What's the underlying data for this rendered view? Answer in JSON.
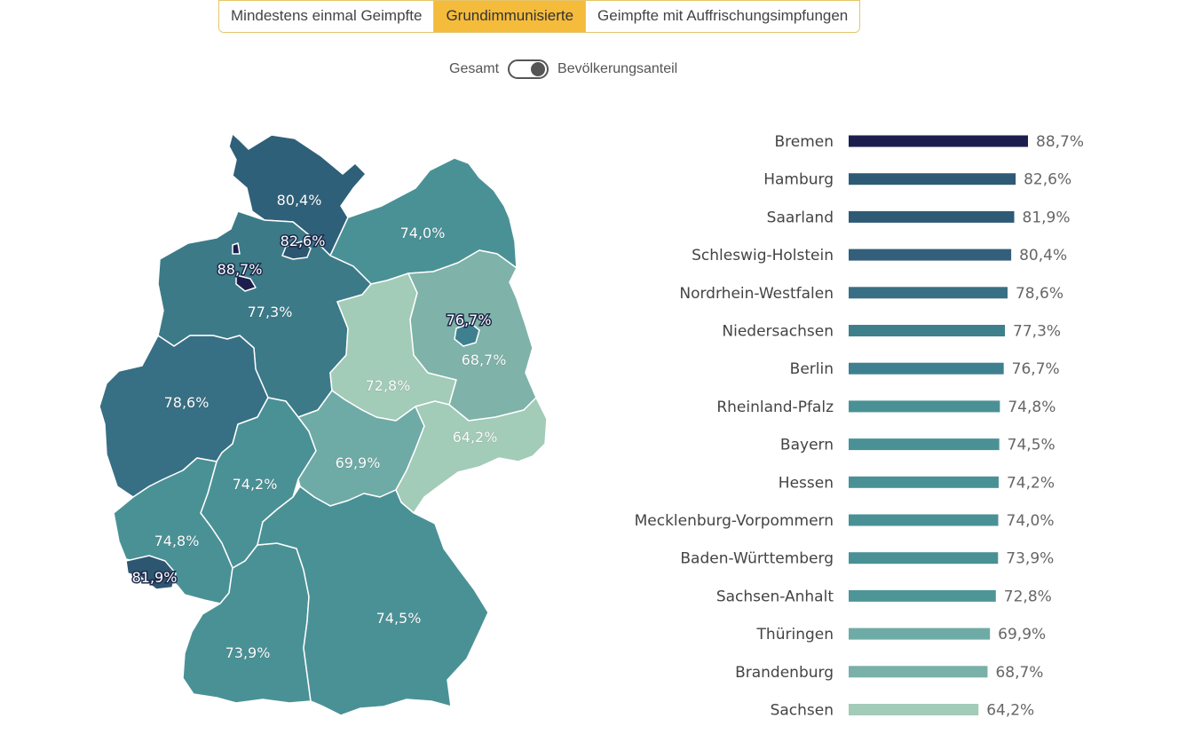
{
  "tabs": [
    {
      "label": "Mindestens einmal Geimpfte",
      "active": false
    },
    {
      "label": "Grundimmunisierte",
      "active": true
    },
    {
      "label": "Geimpfte mit Auffrischungsimpfungen",
      "active": false
    }
  ],
  "toggle": {
    "left_label": "Gesamt",
    "right_label": "Bevölkerungsanteil",
    "selected": "Bevölkerungsanteil"
  },
  "chart_data": [
    {
      "type": "bar",
      "orientation": "horizontal",
      "unit": "%",
      "categories": [
        "Bremen",
        "Hamburg",
        "Saarland",
        "Schleswig-Holstein",
        "Nordrhein-Westfalen",
        "Niedersachsen",
        "Berlin",
        "Rheinland-Pfalz",
        "Bayern",
        "Hessen",
        "Mecklenburg-Vorpommern",
        "Baden-Württemberg",
        "Sachsen-Anhalt",
        "Thüringen",
        "Brandenburg",
        "Sachsen"
      ],
      "values": [
        88.7,
        82.6,
        81.9,
        80.4,
        78.6,
        77.3,
        76.7,
        74.8,
        74.5,
        74.2,
        74.0,
        73.9,
        72.8,
        69.9,
        68.7,
        64.2
      ],
      "value_labels": [
        "88,7%",
        "82,6%",
        "81,9%",
        "80,4%",
        "78,6%",
        "77,3%",
        "76,7%",
        "74,8%",
        "74,5%",
        "74,2%",
        "74,0%",
        "73,9%",
        "72,8%",
        "69,9%",
        "68,7%",
        "64,2%"
      ],
      "colors": [
        "#1c1f4e",
        "#2f5a75",
        "#2f5a75",
        "#335f7b",
        "#386f84",
        "#3e7f8c",
        "#3e8090",
        "#4a9196",
        "#4a9196",
        "#4a9196",
        "#4a9196",
        "#4a9196",
        "#4e9597",
        "#6faba6",
        "#79b0a8",
        "#a2cbb8"
      ]
    },
    {
      "type": "choropleth",
      "regions": [
        {
          "name": "Schleswig-Holstein",
          "label": "80,4%",
          "color": "#2f6079"
        },
        {
          "name": "Hamburg",
          "label": "82,6%",
          "color": "#2d5670"
        },
        {
          "name": "Bremen",
          "label": "88,7%",
          "color": "#1c1f4e"
        },
        {
          "name": "Niedersachsen",
          "label": "77,3%",
          "color": "#3c7a88"
        },
        {
          "name": "Mecklenburg-Vorpommern",
          "label": "74,0%",
          "color": "#4a9196"
        },
        {
          "name": "Brandenburg",
          "label": "68,7%",
          "color": "#7fb2a9"
        },
        {
          "name": "Berlin",
          "label": "76,7%",
          "color": "#3e8090"
        },
        {
          "name": "Sachsen-Anhalt",
          "label": "72,8%",
          "color": "#4e9597"
        },
        {
          "name": "Nordrhein-Westfalen",
          "label": "78,6%",
          "color": "#376f84"
        },
        {
          "name": "Hessen",
          "label": "74,2%",
          "color": "#4a9196"
        },
        {
          "name": "Thüringen",
          "label": "69,9%",
          "color": "#6faba6"
        },
        {
          "name": "Sachsen",
          "label": "64,2%",
          "color": "#a2cbb8"
        },
        {
          "name": "Rheinland-Pfalz",
          "label": "74,8%",
          "color": "#4a9196"
        },
        {
          "name": "Saarland",
          "label": "81,9%",
          "color": "#2d5670"
        },
        {
          "name": "Baden-Württemberg",
          "label": "73,9%",
          "color": "#4a9196"
        },
        {
          "name": "Bayern",
          "label": "74,5%",
          "color": "#4a9196"
        }
      ]
    }
  ]
}
